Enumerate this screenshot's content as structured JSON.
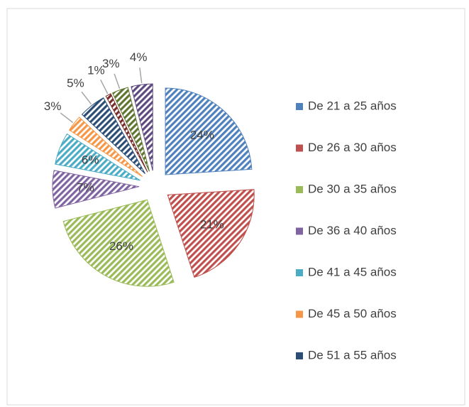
{
  "chart_data": {
    "type": "pie",
    "categories": [
      "De 21 a 25 años",
      "De 26 a 30 años",
      "De 30 a 35 años",
      "De 36 a 40 años",
      "De 41 a 45 años",
      "De 45 a 50 años",
      "De 51 a 55 años",
      null,
      null,
      null
    ],
    "values": [
      24,
      21,
      26,
      7,
      6,
      3,
      5,
      1,
      3,
      4
    ],
    "value_labels": [
      "24%",
      "21%",
      "26%",
      "7%",
      "6%",
      "3%",
      "5%",
      "1%",
      "3%",
      "4%"
    ],
    "colors": [
      "#4f81bd",
      "#c0504d",
      "#9bbb59",
      "#8064a2",
      "#4bacc6",
      "#f79646",
      "#2c4d75",
      "#772c2a",
      "#5f7530",
      "#5e4a7e"
    ],
    "legend": "right"
  }
}
